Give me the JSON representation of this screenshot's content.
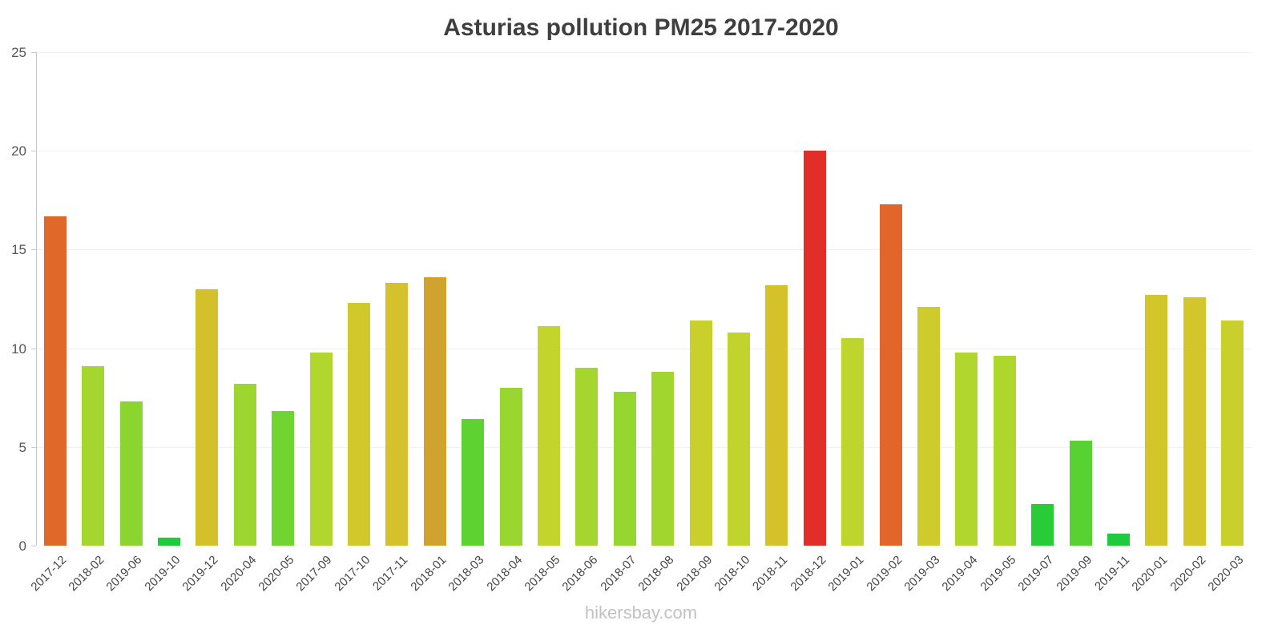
{
  "chart_data": {
    "type": "bar",
    "title": "Asturias pollution PM25 2017-2020",
    "xlabel": "",
    "ylabel": "",
    "ylim": [
      0,
      25
    ],
    "yticks": [
      0,
      5,
      10,
      15,
      20,
      25
    ],
    "grid": "horizontal-faint",
    "legend": "none",
    "categories": [
      "2017-12",
      "2018-02",
      "2019-06",
      "2019-10",
      "2019-12",
      "2020-04",
      "2020-05",
      "2017-09",
      "2017-10",
      "2017-11",
      "2018-01",
      "2018-03",
      "2018-04",
      "2018-05",
      "2018-06",
      "2018-07",
      "2018-08",
      "2018-09",
      "2018-10",
      "2018-11",
      "2018-12",
      "2019-01",
      "2019-02",
      "2019-03",
      "2019-04",
      "2019-05",
      "2019-07",
      "2019-09",
      "2019-11",
      "2020-01",
      "2020-02",
      "2020-03"
    ],
    "values": [
      16.7,
      9.1,
      7.3,
      0.4,
      13.0,
      8.2,
      6.8,
      9.8,
      12.3,
      13.3,
      13.6,
      6.4,
      8.0,
      11.1,
      9.0,
      7.8,
      8.8,
      11.4,
      10.8,
      13.2,
      20.0,
      10.5,
      17.3,
      12.1,
      9.8,
      9.6,
      2.1,
      5.3,
      0.6,
      12.7,
      12.6,
      11.4
    ],
    "colors": [
      "#e0692a",
      "#a4d62f",
      "#8bd530",
      "#1ecb3d",
      "#d4c02b",
      "#9dd630",
      "#70d431",
      "#b1d72e",
      "#cfc92c",
      "#d5c12b",
      "#d0a22e",
      "#5ed231",
      "#9ad630",
      "#c3d42d",
      "#a4d62f",
      "#96d630",
      "#a1d62f",
      "#c9d02c",
      "#c0d42d",
      "#d5c22b",
      "#e12e29",
      "#bdd52d",
      "#e2662a",
      "#cecb2c",
      "#b1d72e",
      "#aed72e",
      "#27cc37",
      "#57d232",
      "#1ecb3d",
      "#d3c62b",
      "#d3c62b",
      "#c9d02c"
    ]
  },
  "watermark": "hikersbay.com"
}
